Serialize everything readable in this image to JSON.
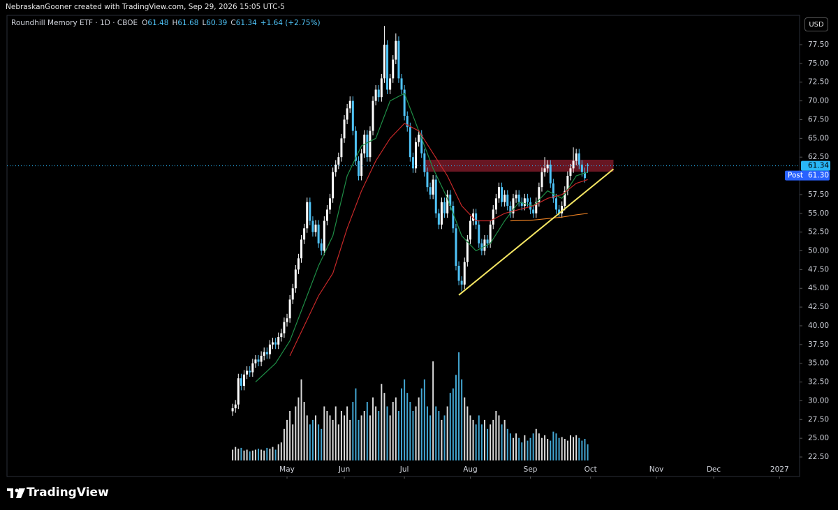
{
  "header": {
    "credit": "NebraskanGooner created with TradingView.com, Sep 29, 2026 15:05 UTC-5"
  },
  "chart_data": {
    "type": "candlestick",
    "symbol": "Roundhill Memory ETF · 1D · CBOE",
    "ohlc_letters": [
      "O",
      "H",
      "L",
      "C"
    ],
    "change": "+1.64 (+2.75%)",
    "currency": "USD",
    "xlim": [
      -78.8,
      198
    ],
    "xticks": [
      {
        "value": 19,
        "label": "May"
      },
      {
        "value": 39,
        "label": "Jun"
      },
      {
        "value": 60,
        "label": "Jul"
      },
      {
        "value": 83,
        "label": "Aug"
      },
      {
        "value": 104,
        "label": "Sep"
      },
      {
        "value": 125,
        "label": "Oct"
      },
      {
        "value": 148,
        "label": "Nov"
      },
      {
        "value": 168,
        "label": "Dec"
      },
      {
        "value": 191,
        "label": "2027"
      }
    ],
    "ylim": [
      21.85,
      81.41
    ],
    "yticks": [
      {
        "value": 22.5,
        "label": "22.50"
      },
      {
        "value": 25,
        "label": "25.00"
      },
      {
        "value": 27.5,
        "label": "27.50"
      },
      {
        "value": 30,
        "label": "30.00"
      },
      {
        "value": 32.5,
        "label": "32.50"
      },
      {
        "value": 35,
        "label": "35.00"
      },
      {
        "value": 37.5,
        "label": "37.50"
      },
      {
        "value": 40,
        "label": "40.00"
      },
      {
        "value": 42.5,
        "label": "42.50"
      },
      {
        "value": 45,
        "label": "45.00"
      },
      {
        "value": 47.5,
        "label": "47.50"
      },
      {
        "value": 50,
        "label": "50.00"
      },
      {
        "value": 52.5,
        "label": "52.50"
      },
      {
        "value": 55,
        "label": "55.00"
      },
      {
        "value": 57.5,
        "label": "57.50"
      },
      {
        "value": 60,
        "label": "60.00"
      },
      {
        "value": 62.5,
        "label": "62.50"
      },
      {
        "value": 65,
        "label": "65.00"
      },
      {
        "value": 67.5,
        "label": "67.50"
      },
      {
        "value": 70,
        "label": "70.00"
      },
      {
        "value": 72.5,
        "label": "72.50"
      },
      {
        "value": 75,
        "label": "75.00"
      },
      {
        "value": 77.5,
        "label": "77.50"
      }
    ],
    "series": [
      {
        "type": "candlestick",
        "up_color": "#ffffff",
        "down_color": "#4fc3f7",
        "open": [
          28.6,
          29.0,
          29.5,
          33.0,
          32.0,
          33.5,
          34.0,
          33.8,
          35.0,
          35.5,
          35.2,
          36.0,
          36.5,
          36.2,
          37.5,
          37.8,
          37.5,
          38.5,
          39.0,
          40.5,
          41.0,
          43.5,
          45.0,
          47.5,
          49.0,
          51.5,
          53.0,
          56.5,
          54.0,
          52.5,
          53.5,
          51.0,
          50.0,
          54.0,
          55.5,
          57.0,
          60.5,
          61.5,
          62.5,
          65.0,
          67.5,
          69.0,
          70.0,
          66.0,
          62.0,
          60.0,
          63.0,
          65.5,
          62.5,
          66.0,
          70.0,
          71.5,
          70.5,
          73.0,
          77.5,
          71.5,
          73.0,
          75.5,
          78.0,
          73.0,
          71.5,
          68.0,
          66.5,
          62.5,
          61.0,
          64.5,
          65.5,
          63.0,
          60.5,
          58.5,
          57.5,
          59.5,
          55.0,
          53.5,
          56.5,
          55.0,
          57.5,
          56.0,
          53.0,
          48.0,
          46.0,
          45.5,
          48.5,
          51.5,
          54.0,
          55.0,
          53.5,
          51.0,
          50.0,
          51.5,
          51.0,
          53.5,
          55.5,
          57.0,
          58.5,
          56.5,
          57.5,
          56.0,
          55.0,
          57.0,
          57.5,
          56.5,
          56.0,
          57.0,
          56.5,
          55.5,
          55.0,
          56.5,
          58.5,
          60.5,
          61.0,
          61.5,
          59.0,
          57.0,
          55.5,
          55.0,
          56.0,
          58.0,
          60.0,
          61.0,
          62.0,
          63.0,
          61.5,
          60.5,
          61.48
        ],
        "high": [
          29.6,
          30.1,
          33.6,
          33.6,
          34.1,
          34.6,
          34.6,
          35.6,
          36.1,
          36.1,
          36.6,
          37.1,
          37.1,
          38.1,
          38.4,
          38.4,
          39.1,
          39.6,
          41.1,
          41.6,
          44.1,
          45.6,
          48.1,
          49.6,
          52.1,
          53.6,
          57.1,
          57.1,
          54.6,
          54.1,
          54.1,
          51.6,
          54.6,
          56.1,
          57.6,
          61.1,
          62.1,
          63.1,
          65.6,
          68.1,
          69.6,
          70.6,
          70.6,
          66.6,
          62.6,
          63.6,
          66.1,
          66.1,
          66.6,
          70.6,
          72.1,
          72.1,
          73.6,
          80.0,
          78.1,
          73.6,
          76.1,
          79.0,
          78.6,
          73.6,
          72.1,
          68.6,
          67.1,
          63.1,
          65.1,
          66.1,
          66.1,
          63.6,
          61.1,
          59.1,
          60.1,
          60.1,
          55.6,
          57.1,
          57.1,
          58.1,
          58.1,
          56.6,
          53.6,
          48.6,
          46.6,
          49.1,
          52.1,
          54.6,
          55.6,
          55.6,
          54.1,
          51.6,
          52.1,
          52.1,
          54.1,
          56.1,
          57.6,
          59.1,
          59.1,
          58.1,
          58.1,
          56.6,
          57.6,
          58.1,
          58.1,
          57.1,
          57.6,
          57.6,
          57.1,
          56.1,
          57.1,
          59.1,
          61.1,
          62.5,
          62.1,
          62.1,
          59.6,
          57.6,
          56.1,
          56.6,
          58.6,
          60.6,
          61.6,
          63.8,
          63.6,
          63.6,
          62.1,
          61.1,
          61.68
        ],
        "low": [
          28.0,
          28.4,
          28.9,
          31.4,
          31.4,
          32.9,
          33.2,
          33.2,
          34.4,
          34.6,
          34.6,
          35.4,
          35.6,
          35.6,
          36.9,
          36.9,
          36.9,
          37.9,
          38.4,
          39.9,
          40.4,
          42.9,
          44.4,
          46.9,
          48.4,
          50.9,
          52.4,
          53.4,
          51.9,
          51.9,
          50.4,
          49.4,
          49.4,
          53.4,
          54.9,
          56.4,
          59.9,
          60.9,
          61.9,
          64.4,
          66.9,
          68.4,
          65.4,
          61.4,
          59.4,
          59.4,
          62.4,
          61.9,
          61.9,
          65.4,
          69.4,
          69.9,
          69.9,
          72.4,
          70.9,
          70.9,
          72.4,
          74.9,
          72.4,
          70.9,
          67.4,
          65.9,
          61.9,
          60.4,
          60.4,
          63.9,
          62.4,
          59.9,
          57.9,
          56.9,
          56.9,
          54.4,
          52.9,
          52.9,
          54.4,
          54.4,
          55.4,
          52.4,
          47.4,
          45.4,
          44.6,
          44.9,
          47.9,
          50.9,
          53.4,
          52.9,
          50.4,
          49.4,
          49.4,
          50.4,
          50.4,
          52.9,
          54.9,
          56.4,
          55.9,
          55.9,
          55.4,
          54.4,
          54.4,
          56.4,
          55.9,
          55.4,
          55.4,
          55.9,
          54.9,
          54.4,
          54.4,
          55.9,
          57.9,
          59.9,
          60.4,
          58.4,
          56.4,
          54.9,
          54.4,
          54.4,
          55.4,
          57.4,
          59.4,
          60.4,
          61.4,
          60.9,
          59.9,
          59.1,
          60.39
        ],
        "close": [
          29.0,
          29.5,
          33.0,
          32.0,
          33.5,
          34.0,
          33.8,
          35.0,
          35.5,
          35.2,
          36.0,
          36.5,
          36.2,
          37.5,
          37.8,
          37.5,
          38.5,
          39.0,
          40.5,
          41.0,
          43.5,
          45.0,
          47.5,
          49.0,
          51.5,
          53.0,
          56.5,
          54.0,
          52.5,
          53.5,
          51.0,
          50.0,
          54.0,
          55.5,
          57.0,
          60.5,
          61.5,
          62.5,
          65.0,
          67.5,
          69.0,
          70.0,
          66.0,
          62.0,
          60.0,
          63.0,
          65.5,
          62.5,
          66.0,
          70.0,
          71.5,
          70.5,
          73.0,
          77.5,
          71.5,
          73.0,
          75.5,
          78.0,
          73.0,
          71.5,
          68.0,
          66.5,
          62.5,
          61.0,
          64.5,
          65.5,
          63.0,
          60.5,
          58.5,
          57.5,
          59.5,
          55.0,
          53.5,
          56.5,
          55.0,
          57.5,
          56.0,
          53.0,
          48.0,
          46.0,
          45.5,
          48.5,
          51.5,
          54.0,
          55.0,
          53.5,
          51.0,
          50.0,
          51.5,
          51.0,
          53.5,
          55.5,
          57.0,
          58.5,
          56.5,
          57.5,
          56.0,
          55.0,
          57.0,
          57.5,
          56.5,
          56.0,
          57.0,
          56.5,
          55.5,
          55.0,
          56.5,
          58.5,
          60.5,
          61.0,
          61.5,
          59.0,
          57.0,
          55.5,
          55.0,
          56.0,
          58.0,
          60.0,
          61.0,
          62.0,
          63.0,
          61.5,
          60.5,
          59.7,
          61.34
        ],
        "volume": [
          1.2,
          1.5,
          1.3,
          1.4,
          1.1,
          1.2,
          1.0,
          1.1,
          1.2,
          1.3,
          1.2,
          1.1,
          1.4,
          1.3,
          1.5,
          1.2,
          1.8,
          2.0,
          3.5,
          4.5,
          5.5,
          4.0,
          6.0,
          7.0,
          9.0,
          6.5,
          5.0,
          4.0,
          4.5,
          5.0,
          4.0,
          3.5,
          6.0,
          5.5,
          5.0,
          4.5,
          6.0,
          4.0,
          5.5,
          5.0,
          6.0,
          4.5,
          6.5,
          8.0,
          4.5,
          5.0,
          5.5,
          6.5,
          5.0,
          7.0,
          6.0,
          5.5,
          8.5,
          7.5,
          6.0,
          5.0,
          6.5,
          7.0,
          5.5,
          8.0,
          9.0,
          7.5,
          6.5,
          5.5,
          6.0,
          7.0,
          8.0,
          9.0,
          6.0,
          5.0,
          11.0,
          6.0,
          5.5,
          4.5,
          5.0,
          6.0,
          7.5,
          8.0,
          9.5,
          12.0,
          9.0,
          7.0,
          6.0,
          5.0,
          4.5,
          4.0,
          5.0,
          4.0,
          4.5,
          3.5,
          4.0,
          4.5,
          5.5,
          5.0,
          4.0,
          4.5,
          3.5,
          3.0,
          2.5,
          3.0,
          2.5,
          2.0,
          2.8,
          2.2,
          2.5,
          3.0,
          3.5,
          3.0,
          2.5,
          2.8,
          2.4,
          2.2,
          3.2,
          3.0,
          2.5,
          2.6,
          2.4,
          2.2,
          2.8,
          2.6,
          2.8,
          2.5,
          2.2,
          2.4,
          1.8
        ]
      },
      {
        "type": "line",
        "color": "#1e8c45",
        "x": [
          8,
          15,
          20,
          25,
          30,
          35,
          40,
          45,
          50,
          55,
          60,
          65,
          70,
          75,
          80,
          85,
          90,
          95,
          100,
          105,
          110,
          115,
          120,
          124
        ],
        "values": [
          32.5,
          35,
          38,
          43,
          48,
          52,
          60,
          64,
          65,
          70,
          71,
          66,
          61,
          57,
          52,
          50,
          51,
          54,
          56.5,
          56,
          58,
          57,
          60,
          60.5
        ]
      },
      {
        "type": "line",
        "color": "#c62828",
        "x": [
          20,
          25,
          30,
          35,
          40,
          45,
          50,
          55,
          60,
          65,
          70,
          75,
          80,
          85,
          90,
          95,
          100,
          105,
          110,
          115,
          120,
          124
        ],
        "values": [
          36,
          40,
          44,
          47,
          53,
          58,
          62,
          65,
          67,
          66,
          63,
          60,
          56,
          54,
          54,
          55,
          55.5,
          56,
          57,
          57.5,
          59,
          59.5
        ]
      },
      {
        "type": "line",
        "color": "#e67e22",
        "x": [
          97,
          105,
          110,
          115,
          120,
          124
        ],
        "values": [
          54,
          54.1,
          54.3,
          54.5,
          54.8,
          55.0
        ]
      }
    ],
    "last_price_color": "#29b6f6",
    "post": {
      "label": "Post",
      "price": {
        "value": 61.3,
        "label": "61.30"
      },
      "color": "#2962ff"
    },
    "zone": {
      "x": [
        67,
        133
      ],
      "y": [
        60.56,
        62.15
      ],
      "color": "#8b1e2e"
    },
    "trendline": {
      "x": [
        79,
        133
      ],
      "y": [
        44.1,
        60.9
      ],
      "color": "#f5e663"
    }
  },
  "footer": {
    "brand": "TradingView"
  }
}
